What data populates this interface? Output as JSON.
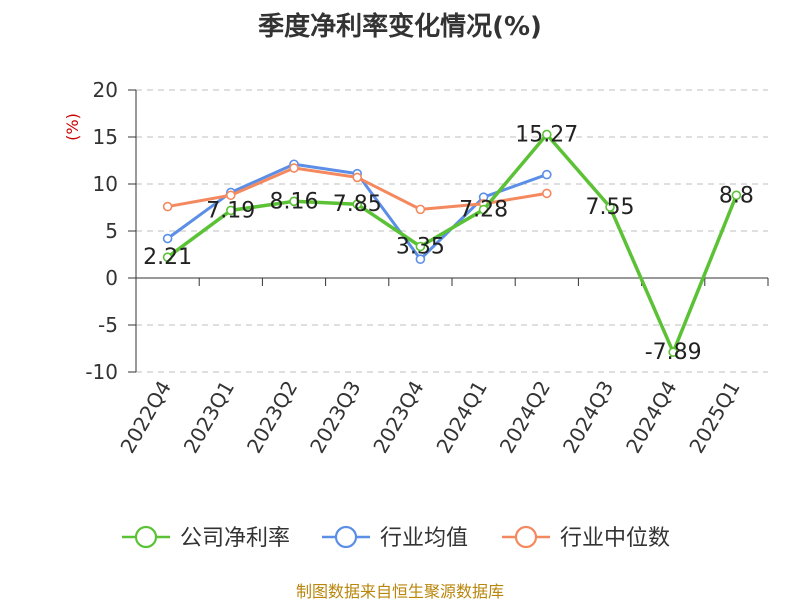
{
  "chart_data": {
    "type": "line",
    "title": "季度净利率变化情况(%)",
    "ylabel": "(%)",
    "xlabel": "",
    "categories": [
      "2022Q4",
      "2023Q1",
      "2023Q2",
      "2023Q3",
      "2023Q4",
      "2024Q1",
      "2024Q2",
      "2024Q3",
      "2024Q4",
      "2025Q1"
    ],
    "ylim": [
      -10,
      20
    ],
    "yticks": [
      20,
      15,
      10,
      5,
      0,
      -5,
      -10
    ],
    "grid": true,
    "legend_position": "bottom",
    "series": [
      {
        "name": "公司净利率",
        "color": "#5bc236",
        "values": [
          2.21,
          7.19,
          8.16,
          7.85,
          3.35,
          7.28,
          15.27,
          7.55,
          -7.89,
          8.8
        ],
        "labels": [
          "2.21",
          "7.19",
          "8.16",
          "7.85",
          "3.35",
          "7.28",
          "15.27",
          "7.55",
          "-7.89",
          "8.8"
        ]
      },
      {
        "name": "行业均值",
        "color": "#5b8ee6",
        "values": [
          4.2,
          9.1,
          12.1,
          11.1,
          2.0,
          8.6,
          11.0,
          null,
          null,
          null
        ]
      },
      {
        "name": "行业中位数",
        "color": "#f4895f",
        "values": [
          7.6,
          8.8,
          11.7,
          10.7,
          7.3,
          7.9,
          9.0,
          null,
          null,
          null
        ]
      }
    ]
  },
  "footer": {
    "source": "制图数据来自恒生聚源数据库"
  }
}
